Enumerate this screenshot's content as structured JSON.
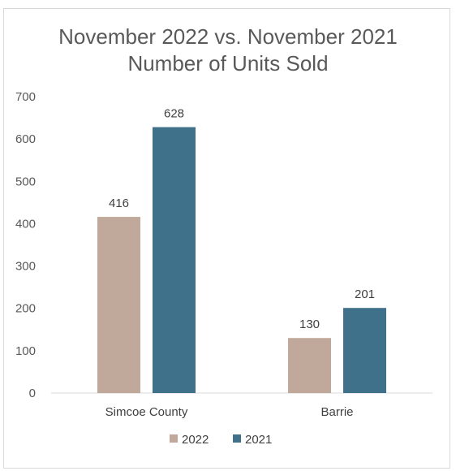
{
  "chart_data": {
    "type": "bar",
    "title": "November 2022 vs. November 2021",
    "subtitle": "Number of Units Sold",
    "categories": [
      "Simcoe County",
      "Barrie"
    ],
    "series": [
      {
        "name": "2022",
        "values": [
          416,
          130
        ],
        "color": "#c0a99a"
      },
      {
        "name": "2021",
        "values": [
          628,
          201
        ],
        "color": "#3f718a"
      }
    ],
    "ylim": [
      0,
      700
    ],
    "yticks": [
      "0",
      "100",
      "200",
      "300",
      "400",
      "500",
      "600",
      "700"
    ],
    "grid": false,
    "legend": "bottom",
    "data_labels": true
  }
}
